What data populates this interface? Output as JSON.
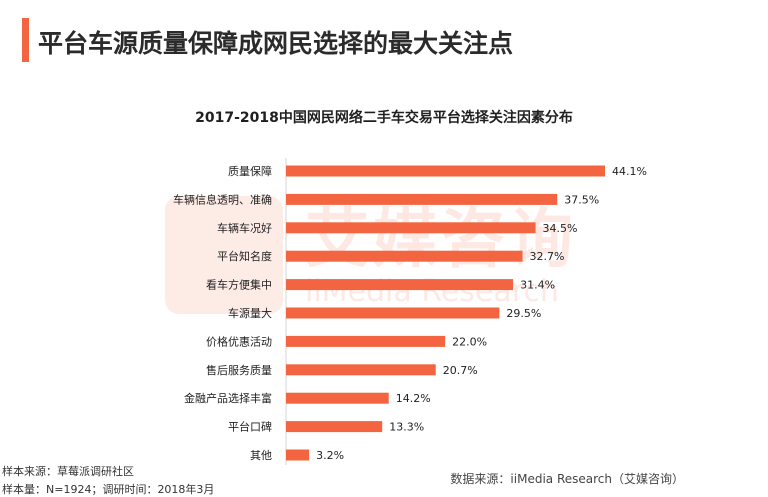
{
  "page": {
    "title": "平台车源质量保障成网民选择的最大关注点",
    "accent_color": "#f26540"
  },
  "watermark": {
    "text_cn": "艾媒咨询",
    "text_en": "iiMedia Research",
    "color": "#f26540"
  },
  "chart_data": {
    "type": "bar",
    "orientation": "horizontal",
    "title": "2017-2018中国网民网络二手车交易平台选择关注因素分布",
    "categories": [
      "质量保障",
      "车辆信息透明、准确",
      "车辆车况好",
      "平台知名度",
      "看车方便集中",
      "车源量大",
      "价格优惠活动",
      "售后服务质量",
      "金融产品选择丰富",
      "平台口碑",
      "其他"
    ],
    "values": [
      44.1,
      37.5,
      34.5,
      32.7,
      31.4,
      29.5,
      22.0,
      20.7,
      14.2,
      13.3,
      3.2
    ],
    "value_labels": [
      "44.1%",
      "37.5%",
      "34.5%",
      "32.7%",
      "31.4%",
      "29.5%",
      "22.0%",
      "20.7%",
      "14.2%",
      "13.3%",
      "3.2%"
    ],
    "bar_color": "#f26540",
    "xlim": [
      0,
      44.1
    ],
    "grid": false,
    "legend": "none"
  },
  "footer": {
    "sample_source": "样本来源：草莓派调研社区",
    "sample_size": "样本量：N=1924；调研时间：2018年3月",
    "data_source": "数据来源：iiMedia Research（艾媒咨询）"
  }
}
